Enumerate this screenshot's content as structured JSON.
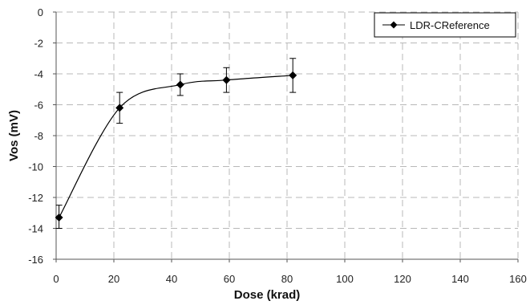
{
  "chart_data": {
    "type": "line",
    "title": "",
    "xlabel": "Dose   (krad)",
    "ylabel": "Vos   (mV)",
    "xlim": [
      0,
      160
    ],
    "ylim": [
      -16,
      0
    ],
    "x_ticks": [
      0,
      20,
      40,
      60,
      80,
      100,
      120,
      140,
      160
    ],
    "y_ticks": [
      0,
      -2,
      -4,
      -6,
      -8,
      -10,
      -12,
      -14,
      -16
    ],
    "grid": true,
    "grid_style": "dashed",
    "legend_position": "top-right",
    "series": [
      {
        "name": "LDR-CReference",
        "color": "#000000",
        "marker": "diamond",
        "x": [
          1,
          22,
          43,
          59,
          82
        ],
        "y": [
          -13.3,
          -6.2,
          -4.7,
          -4.4,
          -4.1
        ],
        "error_upper": [
          -12.5,
          -5.2,
          -4.0,
          -3.6,
          -3.0
        ],
        "error_lower": [
          -14.0,
          -7.2,
          -5.4,
          -5.2,
          -5.2
        ]
      }
    ]
  }
}
